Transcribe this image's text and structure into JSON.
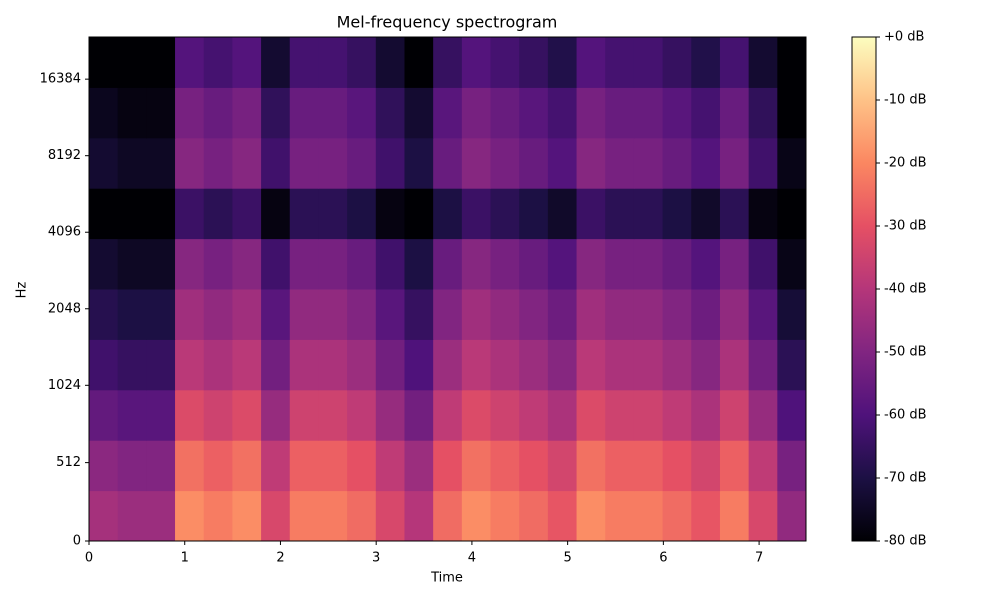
{
  "chart_data": {
    "type": "heatmap",
    "title": "Mel-frequency spectrogram",
    "x_label": "Time",
    "y_label": "Hz",
    "xlim": [
      0,
      7.49
    ],
    "xticks": [
      0,
      1,
      2,
      3,
      4,
      5,
      6,
      7
    ],
    "ylim": [
      0,
      24000
    ],
    "yticks": [
      0,
      512,
      1024,
      2048,
      4096,
      8192,
      16384
    ],
    "yscale": "symlog",
    "colormap": "magma",
    "clim": [
      -80,
      0
    ],
    "colorbar_ticks": [
      {
        "value": 0,
        "label": "+0 dB"
      },
      {
        "value": -10,
        "label": "-10 dB"
      },
      {
        "value": -20,
        "label": "-20 dB"
      },
      {
        "value": -30,
        "label": "-30 dB"
      },
      {
        "value": -40,
        "label": "-40 dB"
      },
      {
        "value": -50,
        "label": "-50 dB"
      },
      {
        "value": -60,
        "label": "-60 dB"
      },
      {
        "value": -70,
        "label": "-70 dB"
      },
      {
        "value": -80,
        "label": "-80 dB"
      }
    ],
    "z": [
      [
        -43,
        -45,
        -45,
        -19,
        -22,
        -19,
        -33,
        -22,
        -22,
        -25,
        -33,
        -40,
        -25,
        -19,
        -22,
        -25,
        -29,
        -19,
        -22,
        -22,
        -25,
        -29,
        -22,
        -33,
        -47
      ],
      [
        -48,
        -50,
        -50,
        -24,
        -27,
        -24,
        -38,
        -27,
        -27,
        -30,
        -38,
        -45,
        -30,
        -24,
        -27,
        -30,
        -34,
        -24,
        -27,
        -27,
        -30,
        -34,
        -27,
        -38,
        -52
      ],
      [
        -56,
        -58,
        -58,
        -32,
        -35,
        -32,
        -46,
        -35,
        -35,
        -38,
        -46,
        -53,
        -38,
        -32,
        -35,
        -38,
        -42,
        -32,
        -35,
        -35,
        -38,
        -42,
        -35,
        -46,
        -60
      ],
      [
        -63,
        -65,
        -65,
        -39,
        -42,
        -39,
        -53,
        -42,
        -42,
        -45,
        -53,
        -60,
        -45,
        -39,
        -42,
        -45,
        -49,
        -39,
        -42,
        -42,
        -45,
        -49,
        -42,
        -53,
        -67
      ],
      [
        -68,
        -70,
        -70,
        -44,
        -47,
        -44,
        -58,
        -47,
        -47,
        -50,
        -58,
        -65,
        -50,
        -44,
        -47,
        -50,
        -54,
        -44,
        -47,
        -47,
        -50,
        -54,
        -47,
        -58,
        -72
      ],
      [
        -73,
        -75,
        -75,
        -49,
        -52,
        -49,
        -63,
        -52,
        -52,
        -55,
        -63,
        -70,
        -55,
        -49,
        -52,
        -55,
        -59,
        -49,
        -52,
        -52,
        -55,
        -59,
        -52,
        -63,
        -77
      ],
      [
        -80,
        -80,
        -80,
        -64,
        -67,
        -64,
        -78,
        -67,
        -67,
        -70,
        -78,
        -80,
        -70,
        -64,
        -67,
        -70,
        -74,
        -64,
        -67,
        -67,
        -70,
        -74,
        -67,
        -78,
        -80
      ],
      [
        -73,
        -75,
        -75,
        -49,
        -52,
        -49,
        -63,
        -52,
        -52,
        -55,
        -63,
        -70,
        -55,
        -49,
        -52,
        -55,
        -59,
        -49,
        -52,
        -52,
        -55,
        -59,
        -52,
        -63,
        -77
      ],
      [
        -76,
        -78,
        -78,
        -52,
        -55,
        -52,
        -66,
        -55,
        -55,
        -58,
        -66,
        -73,
        -58,
        -52,
        -55,
        -58,
        -62,
        -52,
        -55,
        -55,
        -58,
        -62,
        -55,
        -66,
        -80
      ],
      [
        -80,
        -80,
        -80,
        -59,
        -62,
        -59,
        -73,
        -62,
        -62,
        -65,
        -73,
        -80,
        -65,
        -59,
        -62,
        -65,
        -69,
        -59,
        -62,
        -62,
        -65,
        -69,
        -62,
        -73,
        -80
      ]
    ]
  }
}
